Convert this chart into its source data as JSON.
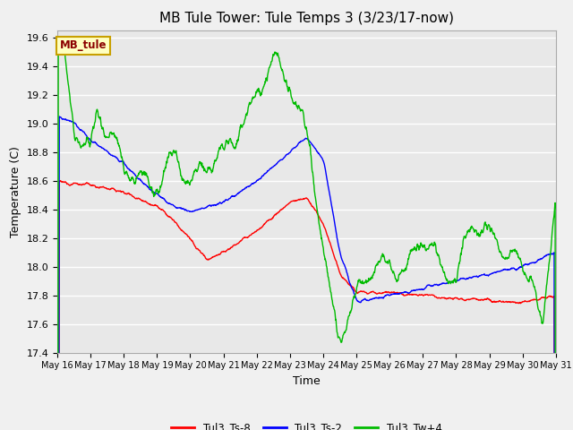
{
  "title": "MB Tule Tower: Tule Temps 3 (3/23/17-now)",
  "xlabel": "Time",
  "ylabel": "Temperature (C)",
  "ylim": [
    17.4,
    19.65
  ],
  "yticks": [
    17.4,
    17.6,
    17.8,
    18.0,
    18.2,
    18.4,
    18.6,
    18.8,
    19.0,
    19.2,
    19.4,
    19.6
  ],
  "xtick_labels": [
    "May 16",
    "May 17",
    "May 18",
    "May 19",
    "May 20",
    "May 21",
    "May 22",
    "May 23",
    "May 24",
    "May 25",
    "May 26",
    "May 27",
    "May 28",
    "May 29",
    "May 30",
    "May 31"
  ],
  "colors": {
    "Tul3_Ts-8": "#ff0000",
    "Tul3_Ts-2": "#0000ff",
    "Tul3_Tw+4": "#00bb00"
  },
  "legend_label": "MB_tule",
  "background_color": "#e8e8e8",
  "grid_color": "#ffffff",
  "line_width": 1.0,
  "title_fontsize": 11,
  "axis_fontsize": 9,
  "tick_fontsize": 8
}
